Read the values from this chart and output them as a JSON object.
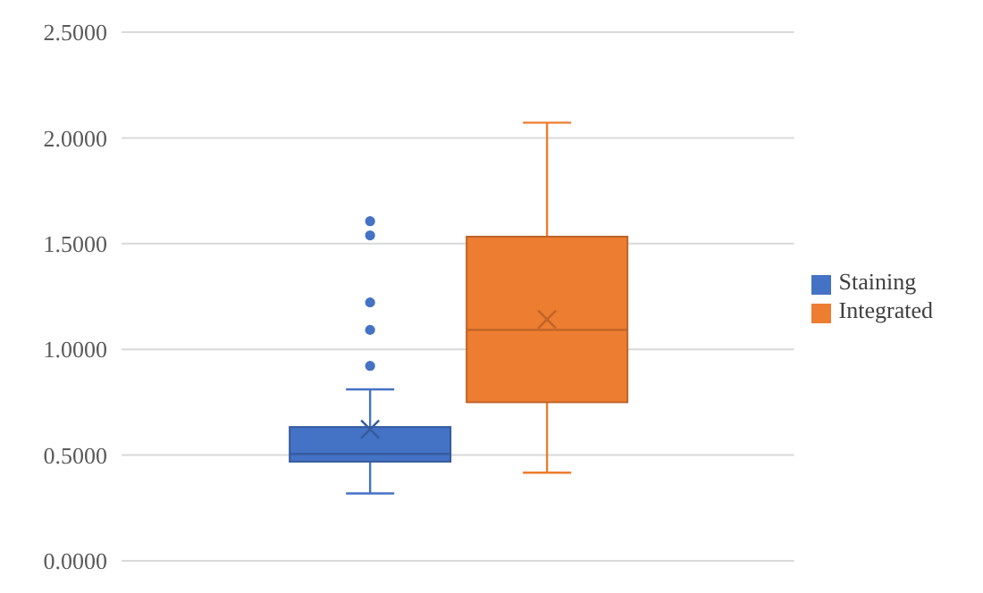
{
  "chart_data": {
    "type": "box",
    "categories": [
      null
    ],
    "series": [
      {
        "name": "Staining",
        "color": "#4472c4",
        "boxes": [
          {
            "low": 0.319,
            "q1": 0.469,
            "median": 0.506,
            "q3": 0.633,
            "high": 0.811,
            "mean": 0.622,
            "outliers": [
              0.922,
              1.092,
              1.222,
              1.539,
              1.606
            ]
          }
        ]
      },
      {
        "name": "Integrated",
        "color": "#ed7d31",
        "boxes": [
          {
            "low": 0.417,
            "q1": 0.75,
            "median": 1.092,
            "q3": 1.533,
            "high": 2.072,
            "mean": 1.142
          }
        ]
      }
    ],
    "ylim": [
      0,
      2.5
    ],
    "yticks": [
      {
        "value": 0,
        "label": "0.0000"
      },
      {
        "value": 0.5,
        "label": "0.5000"
      },
      {
        "value": 1,
        "label": "1.0000"
      },
      {
        "value": 1.5,
        "label": "1.5000"
      },
      {
        "value": 2,
        "label": "2.0000"
      },
      {
        "value": 2.5,
        "label": "2.5000"
      }
    ],
    "grid": "y",
    "legend": "right"
  }
}
